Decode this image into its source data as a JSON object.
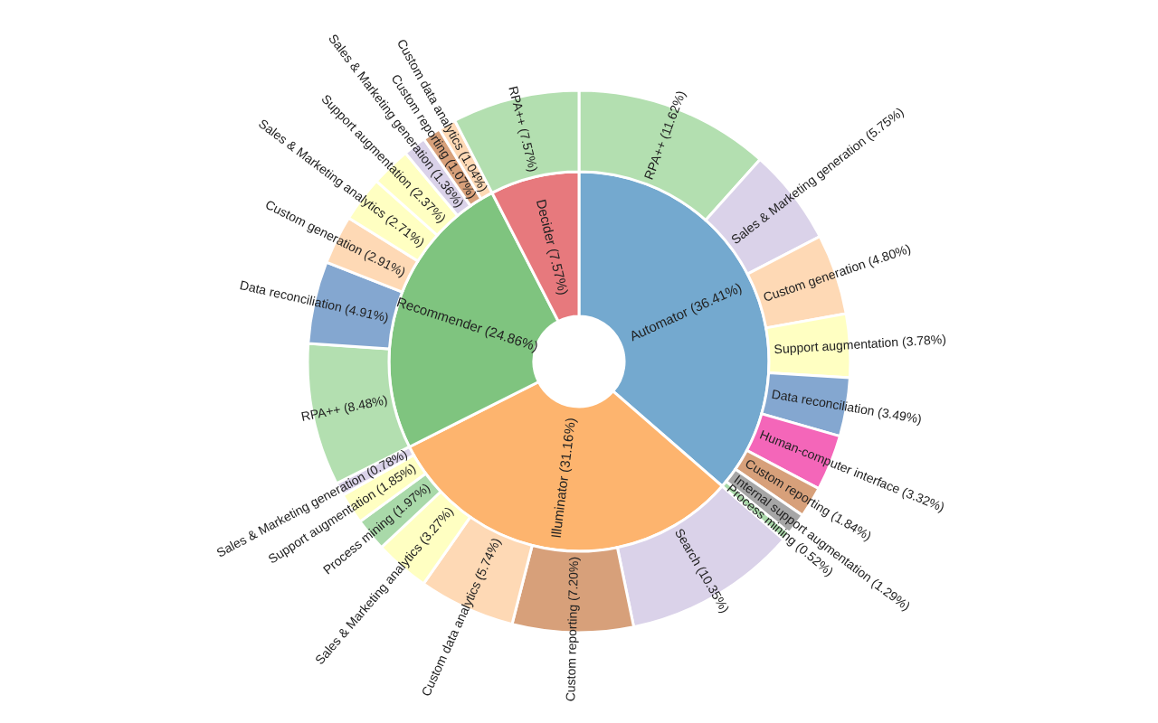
{
  "chart_data": {
    "type": "donut",
    "series": [
      {
        "values": [
          36.41,
          31.16,
          24.86,
          7.57
        ],
        "colors": [
          "#74a9cf",
          "#fdb46e",
          "#7fc47f",
          "#e7797d"
        ],
        "value_labels": [
          "Automator (36.41%)",
          "Illuminator (31.16%)",
          "Recommender (24.86%)",
          "Decider (7.57%)"
        ]
      },
      {
        "values": [
          11.62,
          5.75,
          4.8,
          3.78,
          3.49,
          3.32,
          1.84,
          1.29,
          0.52,
          10.35,
          7.2,
          5.74,
          3.27,
          1.97,
          1.85,
          0.78,
          8.48,
          4.91,
          2.91,
          2.71,
          2.37,
          1.36,
          1.07,
          1.04,
          7.57
        ],
        "colors": [
          "#b3dfb0",
          "#dad2e9",
          "#fed9b5",
          "#ffffc2",
          "#84a7d0",
          "#f466b9",
          "#d7a07a",
          "#a6a6a6",
          "#a9d9a9",
          "#dad2e9",
          "#d7a07a",
          "#fed9b5",
          "#ffffc2",
          "#a9d9a9",
          "#ffffc2",
          "#dad2e9",
          "#b3dfb0",
          "#84a7d0",
          "#fed9b5",
          "#ffffc2",
          "#ffffc2",
          "#dad2e9",
          "#d7a07a",
          "#fed9b5",
          "#b3dfb0"
        ],
        "value_labels": [
          "RPA++ (11.62%)",
          "Sales & Marketing generation (5.75%)",
          "Custom generation (4.80%)",
          "Support augmentation (3.78%)",
          "Data reconciliation (3.49%)",
          "Human-computer interface (3.32%)",
          "Custom reporting (1.84%)",
          "Internal support augmentation (1.29%)",
          "Process mining (0.52%)",
          "Search (10.35%)",
          "Custom reporting (7.20%)",
          "Custom data analytics (5.74%)",
          "Sales & Marketing analytics (3.27%)",
          "Process mining (1.97%)",
          "Support augmentation (1.85%)",
          "Sales & Marketing generation (0.78%)",
          "RPA++ (8.48%)",
          "Data reconciliation (4.91%)",
          "Custom generation (2.91%)",
          "Sales & Marketing analytics (2.71%)",
          "Support augmentation (2.37%)",
          "Sales & Marketing generation (1.36%)",
          "Custom reporting (1.07%)",
          "Custom data analytics (1.04%)",
          "RPA++ (7.57%)"
        ]
      }
    ]
  }
}
